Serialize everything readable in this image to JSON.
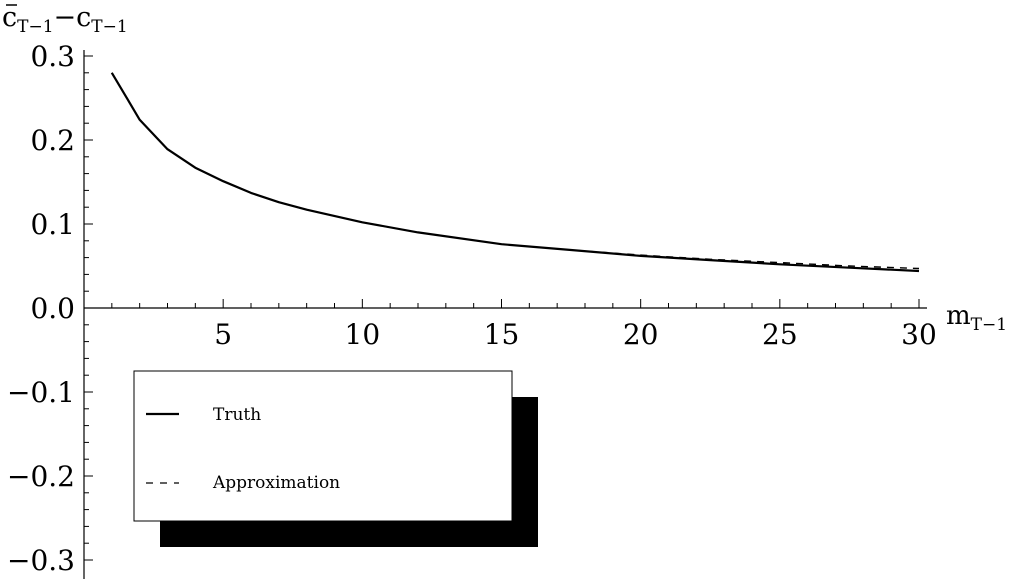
{
  "chart_data": {
    "type": "line",
    "title": "",
    "ylabel": {
      "main": "c",
      "sub": "T−1",
      "minus": "−",
      "main2": "c",
      "sub2": "T−1"
    },
    "xlabel": {
      "main": "m",
      "sub": "T−1"
    },
    "xlim": [
      0,
      30
    ],
    "ylim": [
      -0.3,
      0.3
    ],
    "x_ticks": [
      5,
      10,
      15,
      20,
      25,
      30
    ],
    "x_tick_labels": [
      "5",
      "10",
      "15",
      "20",
      "25",
      "30"
    ],
    "y_ticks": [
      0.3,
      0.2,
      0.1,
      0.0,
      -0.1,
      -0.2,
      -0.3
    ],
    "y_tick_labels": [
      "0.3",
      "0.2",
      "0.1",
      "0.0",
      "−0.1",
      "−0.2",
      "−0.3"
    ],
    "grid": false,
    "legend_position": "bottom-left",
    "series": [
      {
        "name": "Truth",
        "style": "solid",
        "color": "#000000",
        "x": [
          1,
          1.5,
          2,
          3,
          4,
          5,
          6,
          7,
          8,
          10,
          12,
          15,
          17.5,
          20,
          22.5,
          25,
          27.5,
          30
        ],
        "y": [
          0.28,
          0.252,
          0.224,
          0.189,
          0.167,
          0.151,
          0.137,
          0.126,
          0.117,
          0.102,
          0.09,
          0.076,
          0.069,
          0.062,
          0.057,
          0.052,
          0.048,
          0.044
        ]
      },
      {
        "name": "Approximation",
        "style": "dashed",
        "color": "#000000",
        "x": [
          1,
          1.5,
          2,
          3,
          4,
          5,
          6,
          7,
          8,
          10,
          12,
          15,
          17.5,
          20,
          22.5,
          25,
          27.5,
          30
        ],
        "y": [
          0.28,
          0.252,
          0.224,
          0.189,
          0.167,
          0.151,
          0.137,
          0.126,
          0.117,
          0.102,
          0.09,
          0.076,
          0.069,
          0.063,
          0.058,
          0.054,
          0.05,
          0.047
        ]
      }
    ]
  }
}
